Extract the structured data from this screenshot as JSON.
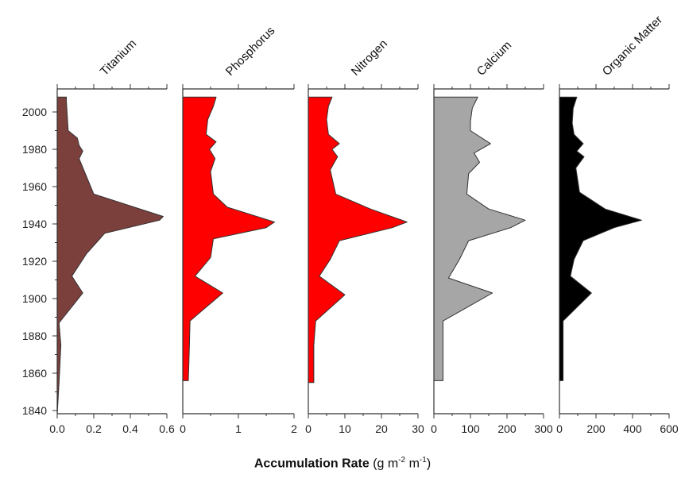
{
  "chart_data": {
    "type": "area",
    "y_axis": {
      "ticks": [
        1840,
        1860,
        1880,
        1900,
        1920,
        1940,
        1960,
        1980,
        2000
      ],
      "tick_labels": [
        "1840",
        "1860",
        "1880",
        "1900",
        "1920",
        "1940",
        "1960",
        "1980",
        "2000"
      ],
      "range": [
        1840,
        2010
      ]
    },
    "xlabel": {
      "main": "Accumulation Rate",
      "unit_prefix": "(g m",
      "unit_exp1": "-2",
      "unit_mid": " m",
      "unit_exp2": "-1",
      "unit_suffix": ")"
    },
    "panels": [
      {
        "name": "Titanium",
        "color": "#7b3f3c",
        "xlim": [
          0,
          0.6
        ],
        "ticks": [
          0,
          0.2,
          0.4,
          0.6
        ],
        "tick_labels": [
          "0.0",
          "0.2",
          "0.4",
          "0.6"
        ],
        "data": [
          [
            2008,
            0.05
          ],
          [
            2006,
            0.05
          ],
          [
            1990,
            0.06
          ],
          [
            1986,
            0.11
          ],
          [
            1982,
            0.12
          ],
          [
            1979,
            0.14
          ],
          [
            1975,
            0.12
          ],
          [
            1956,
            0.2
          ],
          [
            1944,
            0.58
          ],
          [
            1942,
            0.56
          ],
          [
            1935,
            0.26
          ],
          [
            1924,
            0.16
          ],
          [
            1912,
            0.08
          ],
          [
            1903,
            0.14
          ],
          [
            1887,
            0.01
          ],
          [
            1875,
            0.02
          ],
          [
            1855,
            0.01
          ],
          [
            1838,
            0.0
          ]
        ]
      },
      {
        "name": "Phosphorus",
        "color": "#ff0000",
        "xlim": [
          0,
          2
        ],
        "ticks": [
          0,
          1,
          2
        ],
        "tick_labels": [
          "0",
          "1",
          "2"
        ],
        "data": [
          [
            2008,
            0.6
          ],
          [
            2003,
            0.55
          ],
          [
            1996,
            0.45
          ],
          [
            1988,
            0.42
          ],
          [
            1984,
            0.6
          ],
          [
            1980,
            0.48
          ],
          [
            1975,
            0.58
          ],
          [
            1968,
            0.5
          ],
          [
            1956,
            0.55
          ],
          [
            1949,
            0.8
          ],
          [
            1941,
            1.65
          ],
          [
            1938,
            1.5
          ],
          [
            1932,
            0.55
          ],
          [
            1922,
            0.5
          ],
          [
            1912,
            0.22
          ],
          [
            1903,
            0.72
          ],
          [
            1888,
            0.13
          ],
          [
            1875,
            0.12
          ],
          [
            1856,
            0.1
          ]
        ]
      },
      {
        "name": "Nitrogen",
        "color": "#ff0000",
        "xlim": [
          0,
          30
        ],
        "ticks": [
          0,
          10,
          20,
          30
        ],
        "tick_labels": [
          "0",
          "10",
          "20",
          "30"
        ],
        "data": [
          [
            2008,
            6.5
          ],
          [
            2003,
            5.5
          ],
          [
            1996,
            5.0
          ],
          [
            1988,
            5.5
          ],
          [
            1983,
            8.5
          ],
          [
            1980,
            6.5
          ],
          [
            1976,
            8.0
          ],
          [
            1969,
            6.0
          ],
          [
            1956,
            7.5
          ],
          [
            1948,
            17.0
          ],
          [
            1941,
            27.0
          ],
          [
            1938,
            23.0
          ],
          [
            1931,
            8.5
          ],
          [
            1921,
            6.0
          ],
          [
            1912,
            3.0
          ],
          [
            1902,
            10.0
          ],
          [
            1888,
            2.0
          ],
          [
            1875,
            1.5
          ],
          [
            1855,
            1.5
          ]
        ]
      },
      {
        "name": "Calcium",
        "color": "#a6a6a6",
        "xlim": [
          0,
          300
        ],
        "ticks": [
          0,
          100,
          200,
          300
        ],
        "tick_labels": [
          "0",
          "100",
          "200",
          "300"
        ],
        "data": [
          [
            2008,
            120
          ],
          [
            2002,
            105
          ],
          [
            1995,
            100
          ],
          [
            1990,
            100
          ],
          [
            1983,
            155
          ],
          [
            1978,
            110
          ],
          [
            1973,
            125
          ],
          [
            1967,
            95
          ],
          [
            1956,
            90
          ],
          [
            1948,
            150
          ],
          [
            1942,
            250
          ],
          [
            1938,
            210
          ],
          [
            1931,
            95
          ],
          [
            1921,
            70
          ],
          [
            1911,
            40
          ],
          [
            1903,
            160
          ],
          [
            1888,
            25
          ],
          [
            1875,
            25
          ],
          [
            1856,
            25
          ]
        ]
      },
      {
        "name": "Organic Matter",
        "color": "#000000",
        "xlim": [
          0,
          600
        ],
        "ticks": [
          0,
          200,
          400,
          600
        ],
        "tick_labels": [
          "0",
          "200",
          "400",
          "600"
        ],
        "data": [
          [
            2008,
            95
          ],
          [
            2002,
            75
          ],
          [
            1994,
            70
          ],
          [
            1988,
            80
          ],
          [
            1983,
            130
          ],
          [
            1979,
            95
          ],
          [
            1976,
            135
          ],
          [
            1970,
            90
          ],
          [
            1957,
            110
          ],
          [
            1948,
            250
          ],
          [
            1942,
            450
          ],
          [
            1938,
            300
          ],
          [
            1931,
            130
          ],
          [
            1921,
            80
          ],
          [
            1912,
            60
          ],
          [
            1903,
            175
          ],
          [
            1888,
            20
          ],
          [
            1875,
            20
          ],
          [
            1856,
            20
          ]
        ]
      }
    ]
  }
}
